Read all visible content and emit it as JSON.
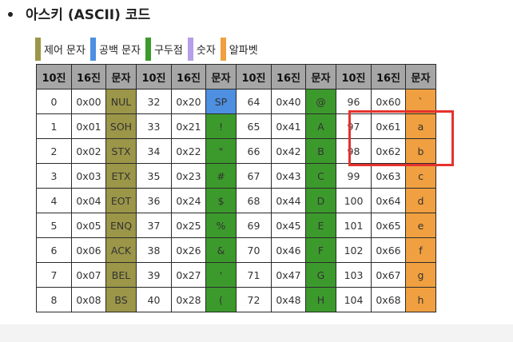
{
  "heading": {
    "text": "아스키 (ASCII) 코드"
  },
  "legend": [
    {
      "label": "제어 문자",
      "color": "#9b9648"
    },
    {
      "label": "공백 문자",
      "color": "#4d8fe0"
    },
    {
      "label": "구두점",
      "color": "#3c9a2c"
    },
    {
      "label": "숫자",
      "color": "#b79ee8"
    },
    {
      "label": "알파벳",
      "color": "#f0a040"
    }
  ],
  "table": {
    "headers": [
      "10진",
      "16진",
      "문자",
      "10진",
      "16진",
      "문자",
      "10진",
      "16진",
      "문자",
      "10진",
      "16진",
      "문자"
    ],
    "char_colors": [
      "#9b9648",
      "#3c9a2c",
      "#3c9a2c",
      "#f0a040"
    ],
    "space_color": "#4d8fe0",
    "rows": [
      [
        "0",
        "0x00",
        "NUL",
        "32",
        "0x20",
        "SP",
        "64",
        "0x40",
        "@",
        "96",
        "0x60",
        "`"
      ],
      [
        "1",
        "0x01",
        "SOH",
        "33",
        "0x21",
        "!",
        "65",
        "0x41",
        "A",
        "97",
        "0x61",
        "a"
      ],
      [
        "2",
        "0x02",
        "STX",
        "34",
        "0x22",
        "\"",
        "66",
        "0x42",
        "B",
        "98",
        "0x62",
        "b"
      ],
      [
        "3",
        "0x03",
        "ETX",
        "35",
        "0x23",
        "#",
        "67",
        "0x43",
        "C",
        "99",
        "0x63",
        "c"
      ],
      [
        "4",
        "0x04",
        "EOT",
        "36",
        "0x24",
        "$",
        "68",
        "0x44",
        "D",
        "100",
        "0x64",
        "d"
      ],
      [
        "5",
        "0x05",
        "ENQ",
        "37",
        "0x25",
        "%",
        "69",
        "0x45",
        "E",
        "101",
        "0x65",
        "e"
      ],
      [
        "6",
        "0x06",
        "ACK",
        "38",
        "0x26",
        "&",
        "70",
        "0x46",
        "F",
        "102",
        "0x66",
        "f"
      ],
      [
        "7",
        "0x07",
        "BEL",
        "39",
        "0x27",
        "'",
        "71",
        "0x47",
        "G",
        "103",
        "0x67",
        "g"
      ],
      [
        "8",
        "0x08",
        "BS",
        "40",
        "0x28",
        "(",
        "72",
        "0x48",
        "H",
        "104",
        "0x68",
        "h"
      ]
    ]
  },
  "highlight_color": "#e5322d"
}
